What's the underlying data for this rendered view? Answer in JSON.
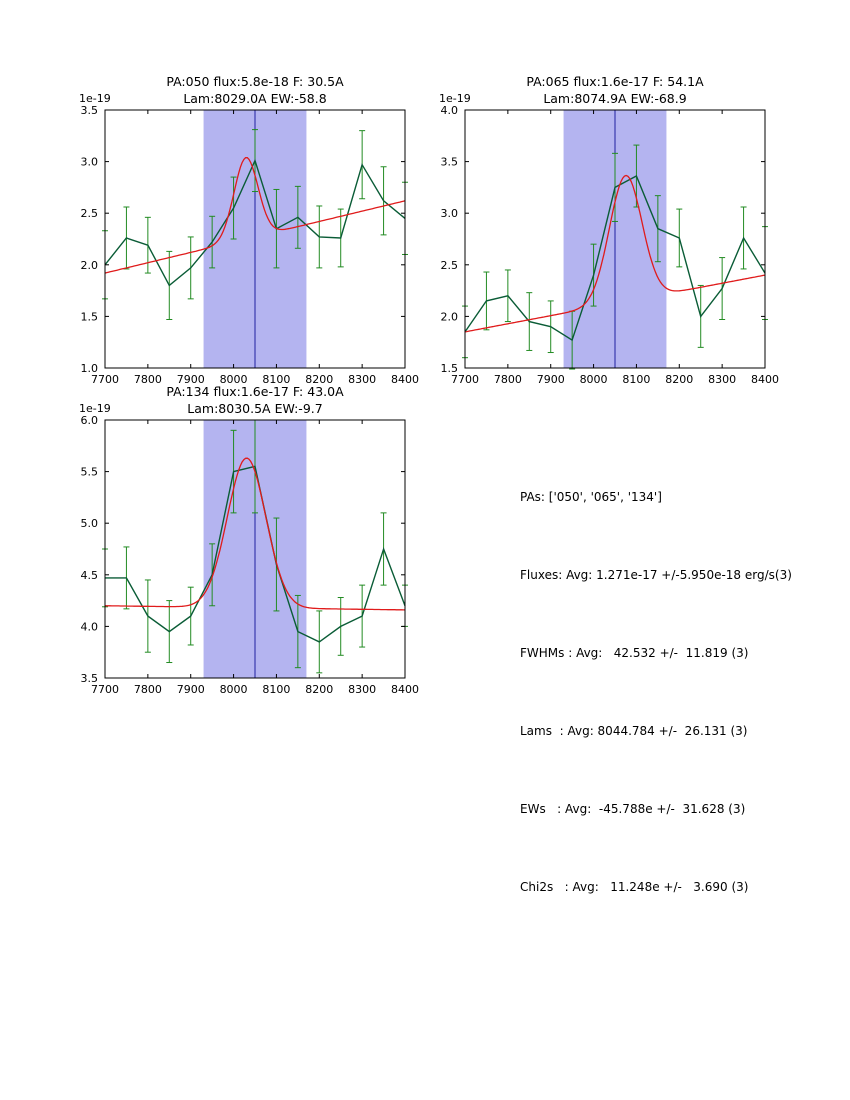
{
  "figure": {
    "background": "#ffffff"
  },
  "colors": {
    "band": "#b4b4f0",
    "vline": "#2020a0",
    "data": "#0a5c36",
    "err": "#228b22",
    "fit": "#e01b1b",
    "frame": "#000000"
  },
  "stats": {
    "lines": [
      "PAs: ['050', '065', '134']",
      "Fluxes: Avg: 1.271e-17 +/-5.950e-18 erg/s(3)",
      "FWHMs : Avg:   42.532 +/-  11.819 (3)",
      "Lams  : Avg: 8044.784 +/-  26.131 (3)",
      "EWs   : Avg:  -45.788e +/-  31.628 (3)",
      "Chi2s   : Avg:   11.248e +/-   3.690 (3)"
    ]
  },
  "chart_data": [
    {
      "type": "line",
      "title_line1": "PA:050 flux:5.8e-18 F: 30.5A",
      "title_line2": "Lam:8029.0A EW:-58.8",
      "offset_label": "1e-19",
      "xlim": [
        7700,
        8400
      ],
      "ylim": [
        1.0,
        3.5
      ],
      "xticks": [
        7700,
        7800,
        7900,
        8000,
        8100,
        8200,
        8300,
        8400
      ],
      "xticklabels": [
        "7700",
        "7800",
        "7900",
        "8000",
        "8100",
        "8200",
        "8300",
        "8400"
      ],
      "yticks": [
        1.0,
        1.5,
        2.0,
        2.5,
        3.0,
        3.5
      ],
      "yticklabels": [
        "1.0",
        "1.5",
        "2.0",
        "2.5",
        "3.0",
        "3.5"
      ],
      "band": [
        7930,
        8170
      ],
      "vline": 8050,
      "x": [
        7700,
        7750,
        7800,
        7850,
        7900,
        7950,
        8000,
        8050,
        8100,
        8150,
        8200,
        8250,
        8300,
        8350,
        8400
      ],
      "y": [
        2.0,
        2.26,
        2.19,
        1.8,
        1.97,
        2.22,
        2.55,
        3.01,
        2.35,
        2.46,
        2.27,
        2.26,
        2.97,
        2.62,
        2.45
      ],
      "yerr": [
        0.33,
        0.3,
        0.27,
        0.33,
        0.3,
        0.25,
        0.3,
        0.3,
        0.38,
        0.3,
        0.3,
        0.28,
        0.33,
        0.33,
        0.35
      ],
      "fit": {
        "base_left": 1.92,
        "base_right": 2.62,
        "center": 8029.0,
        "amp": 0.79,
        "sigma": 28
      }
    },
    {
      "type": "line",
      "title_line1": "PA:065 flux:1.6e-17 F: 54.1A",
      "title_line2": "Lam:8074.9A EW:-68.9",
      "offset_label": "1e-19",
      "xlim": [
        7700,
        8400
      ],
      "ylim": [
        1.5,
        4.0
      ],
      "xticks": [
        7700,
        7800,
        7900,
        8000,
        8100,
        8200,
        8300,
        8400
      ],
      "xticklabels": [
        "7700",
        "7800",
        "7900",
        "8000",
        "8100",
        "8200",
        "8300",
        "8400"
      ],
      "yticks": [
        1.5,
        2.0,
        2.5,
        3.0,
        3.5,
        4.0
      ],
      "yticklabels": [
        "1.5",
        "2.0",
        "2.5",
        "3.0",
        "3.5",
        "4.0"
      ],
      "band": [
        7930,
        8170
      ],
      "vline": 8050,
      "x": [
        7700,
        7750,
        7800,
        7850,
        7900,
        7950,
        8000,
        8050,
        8100,
        8150,
        8200,
        8250,
        8300,
        8350,
        8400
      ],
      "y": [
        1.85,
        2.15,
        2.2,
        1.95,
        1.9,
        1.77,
        2.4,
        3.25,
        3.36,
        2.85,
        2.76,
        2.0,
        2.27,
        2.76,
        2.42
      ],
      "yerr": [
        0.25,
        0.28,
        0.25,
        0.28,
        0.25,
        0.28,
        0.3,
        0.33,
        0.3,
        0.32,
        0.28,
        0.3,
        0.3,
        0.3,
        0.45
      ],
      "fit": {
        "base_left": 1.85,
        "base_right": 2.4,
        "center": 8074.9,
        "amp": 1.22,
        "sigma": 38
      }
    },
    {
      "type": "line",
      "title_line1": "PA:134 flux:1.6e-17 F: 43.0A",
      "title_line2": "Lam:8030.5A EW:-9.7",
      "offset_label": "1e-19",
      "xlim": [
        7700,
        8400
      ],
      "ylim": [
        3.5,
        6.0
      ],
      "xticks": [
        7700,
        7800,
        7900,
        8000,
        8100,
        8200,
        8300,
        8400
      ],
      "xticklabels": [
        "7700",
        "7800",
        "7900",
        "8000",
        "8100",
        "8200",
        "8300",
        "8400"
      ],
      "yticks": [
        3.5,
        4.0,
        4.5,
        5.0,
        5.5,
        6.0
      ],
      "yticklabels": [
        "3.5",
        "4.0",
        "4.5",
        "5.0",
        "5.5",
        "6.0"
      ],
      "band": [
        7930,
        8170
      ],
      "vline": 8050,
      "x": [
        7700,
        7750,
        7800,
        7850,
        7900,
        7950,
        8000,
        8050,
        8100,
        8150,
        8200,
        8250,
        8300,
        8350,
        8400
      ],
      "y": [
        4.47,
        4.47,
        4.1,
        3.95,
        4.1,
        4.5,
        5.5,
        5.55,
        4.6,
        3.95,
        3.85,
        4.0,
        4.1,
        4.75,
        4.2
      ],
      "yerr": [
        0.28,
        0.3,
        0.35,
        0.3,
        0.28,
        0.3,
        0.4,
        0.45,
        0.45,
        0.35,
        0.3,
        0.28,
        0.3,
        0.35,
        0.2
      ],
      "fit": {
        "base_left": 4.2,
        "base_right": 4.16,
        "center": 8030.5,
        "amp": 1.45,
        "sigma": 45
      }
    }
  ]
}
